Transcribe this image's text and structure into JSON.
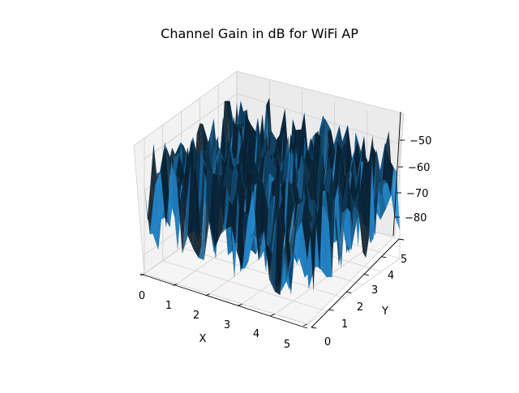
{
  "chart_data": {
    "type": "surface",
    "title": "Channel Gain in dB for WiFi AP",
    "xlabel": "X",
    "ylabel": "Y",
    "zlabel": "",
    "xlim": [
      0,
      5
    ],
    "ylim": [
      0,
      5
    ],
    "zlim": [
      -86,
      -43
    ],
    "xticks": [
      "0",
      "1",
      "2",
      "3",
      "4",
      "5"
    ],
    "yticks": [
      "0",
      "1",
      "2",
      "3",
      "4",
      "5"
    ],
    "zticks": [
      "−50",
      "−60",
      "−70",
      "−80"
    ],
    "grid": true,
    "surface_color": "#1f77b4"
  }
}
